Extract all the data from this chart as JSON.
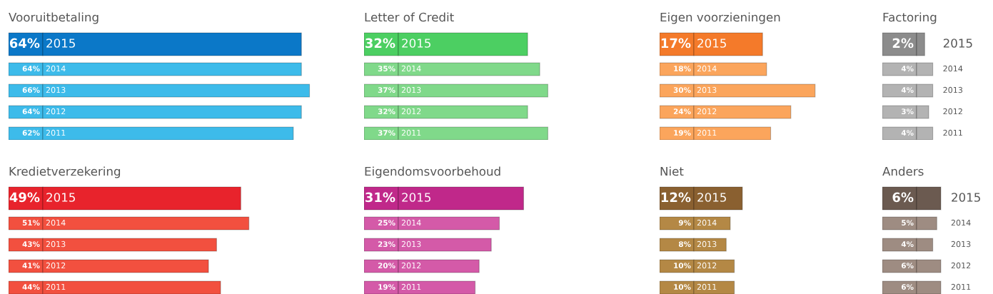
{
  "chart_data": [
    {
      "type": "bar",
      "orientation": "horizontal",
      "title": "Vooruitbetaling",
      "categories": [
        "2015",
        "2014",
        "2013",
        "2012",
        "2011"
      ],
      "values": [
        64,
        64,
        66,
        64,
        62
      ],
      "value_labels": [
        "64%",
        "64%",
        "66%",
        "64%",
        "62%"
      ],
      "colors": [
        "#0b78c8",
        "#3dbbea",
        "#3dbbea",
        "#3dbbea",
        "#3dbbea"
      ]
    },
    {
      "type": "bar",
      "orientation": "horizontal",
      "title": "Letter of Credit",
      "categories": [
        "2015",
        "2014",
        "2013",
        "2012",
        "2011"
      ],
      "values": [
        32,
        35,
        37,
        32,
        37
      ],
      "value_labels": [
        "32%",
        "35%",
        "37%",
        "32%",
        "37%"
      ],
      "colors": [
        "#4ccf62",
        "#80d98a",
        "#80d98a",
        "#80d98a",
        "#80d98a"
      ]
    },
    {
      "type": "bar",
      "orientation": "horizontal",
      "title": "Eigen voorzieningen",
      "categories": [
        "2015",
        "2014",
        "2013",
        "2012",
        "2011"
      ],
      "values": [
        17,
        18,
        30,
        24,
        19
      ],
      "value_labels": [
        "17%",
        "18%",
        "30%",
        "24%",
        "19%"
      ],
      "colors": [
        "#f47a2a",
        "#fba55c",
        "#fba55c",
        "#fba55c",
        "#fba55c"
      ]
    },
    {
      "type": "bar",
      "orientation": "horizontal",
      "title": "Factoring",
      "categories": [
        "2015",
        "2014",
        "2013",
        "2012",
        "2011"
      ],
      "values": [
        2,
        4,
        4,
        3,
        4
      ],
      "value_labels": [
        "2%",
        "4%",
        "4%",
        "3%",
        "4%"
      ],
      "colors": [
        "#8c8c8c",
        "#b3b3b3",
        "#b3b3b3",
        "#b3b3b3",
        "#b3b3b3"
      ]
    },
    {
      "type": "bar",
      "orientation": "horizontal",
      "title": "Kredietverzekering",
      "categories": [
        "2015",
        "2014",
        "2013",
        "2012",
        "2011"
      ],
      "values": [
        49,
        51,
        43,
        41,
        44
      ],
      "value_labels": [
        "49%",
        "51%",
        "43%",
        "41%",
        "44%"
      ],
      "colors": [
        "#e8232c",
        "#f2503f",
        "#f2503f",
        "#f2503f",
        "#f2503f"
      ]
    },
    {
      "type": "bar",
      "orientation": "horizontal",
      "title": "Eigendomsvoorbehoud",
      "categories": [
        "2015",
        "2014",
        "2013",
        "2012",
        "2011"
      ],
      "values": [
        31,
        25,
        23,
        20,
        19
      ],
      "value_labels": [
        "31%",
        "25%",
        "23%",
        "20%",
        "19%"
      ],
      "colors": [
        "#c0288a",
        "#d45aa8",
        "#d45aa8",
        "#d45aa8",
        "#d45aa8"
      ]
    },
    {
      "type": "bar",
      "orientation": "horizontal",
      "title": "Niet",
      "categories": [
        "2015",
        "2014",
        "2013",
        "2012",
        "2011"
      ],
      "values": [
        12,
        9,
        8,
        10,
        10
      ],
      "value_labels": [
        "12%",
        "9%",
        "8%",
        "10%",
        "10%"
      ],
      "colors": [
        "#8a6030",
        "#b48845",
        "#b48845",
        "#b48845",
        "#b48845"
      ]
    },
    {
      "type": "bar",
      "orientation": "horizontal",
      "title": "Anders",
      "categories": [
        "2015",
        "2014",
        "2013",
        "2012",
        "2011"
      ],
      "values": [
        6,
        5,
        4,
        6,
        6
      ],
      "value_labels": [
        "6%",
        "5%",
        "4%",
        "6%",
        "6%"
      ],
      "colors": [
        "#6b5a50",
        "#9e8c82",
        "#9e8c82",
        "#9e8c82",
        "#9e8c82"
      ]
    }
  ]
}
